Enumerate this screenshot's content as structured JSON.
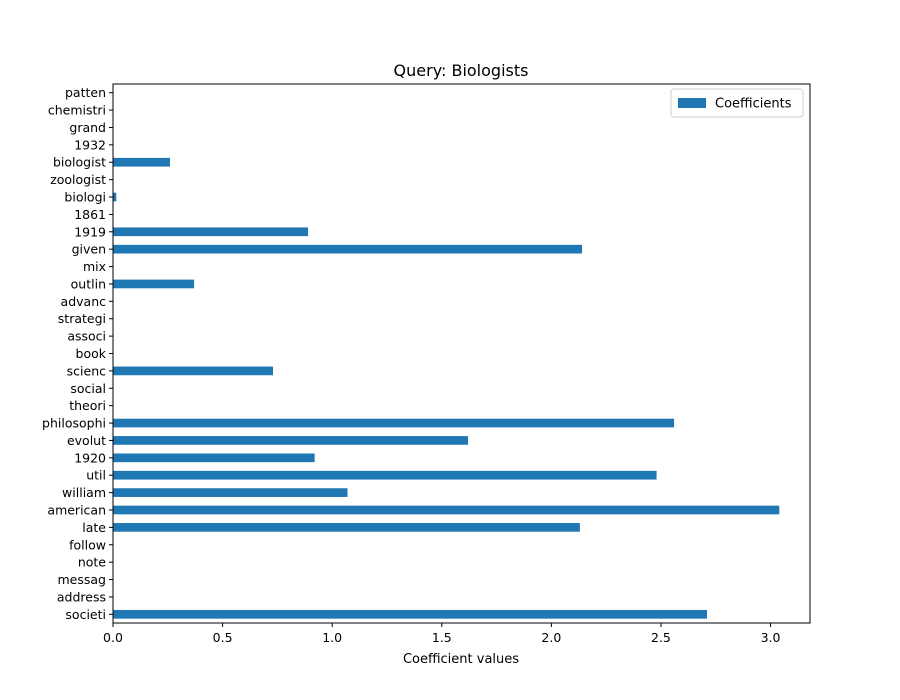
{
  "chart_data": {
    "type": "bar",
    "orientation": "horizontal",
    "title": "Query: Biologists",
    "xlabel": "Coefficient values",
    "ylabel": "",
    "xlim": [
      0,
      3.18
    ],
    "x_ticks": [
      0.0,
      0.5,
      1.0,
      1.5,
      2.0,
      2.5,
      3.0
    ],
    "x_tick_labels": [
      "0.0",
      "0.5",
      "1.0",
      "1.5",
      "2.0",
      "2.5",
      "3.0"
    ],
    "grid": false,
    "legend_position": "top-right",
    "color": "#1f77b4",
    "categories": [
      "patten",
      "chemistri",
      "grand",
      "1932",
      "biologist",
      "zoologist",
      "biologi",
      "1861",
      "1919",
      "given",
      "mix",
      "outlin",
      "advanc",
      "strategi",
      "associ",
      "book",
      "scienc",
      "social",
      "theori",
      "philosophi",
      "evolut",
      "1920",
      "util",
      "william",
      "american",
      "late",
      "follow",
      "note",
      "messag",
      "address",
      "societi"
    ],
    "series": [
      {
        "name": "Coefficients",
        "values": [
          0,
          0,
          0,
          0,
          0.26,
          0,
          0.015,
          0,
          0.89,
          2.14,
          0,
          0.37,
          0,
          0,
          0,
          0,
          0.73,
          0,
          0,
          2.56,
          1.62,
          0.92,
          2.48,
          1.07,
          3.04,
          2.13,
          0,
          0,
          0,
          0,
          2.71
        ]
      }
    ]
  }
}
